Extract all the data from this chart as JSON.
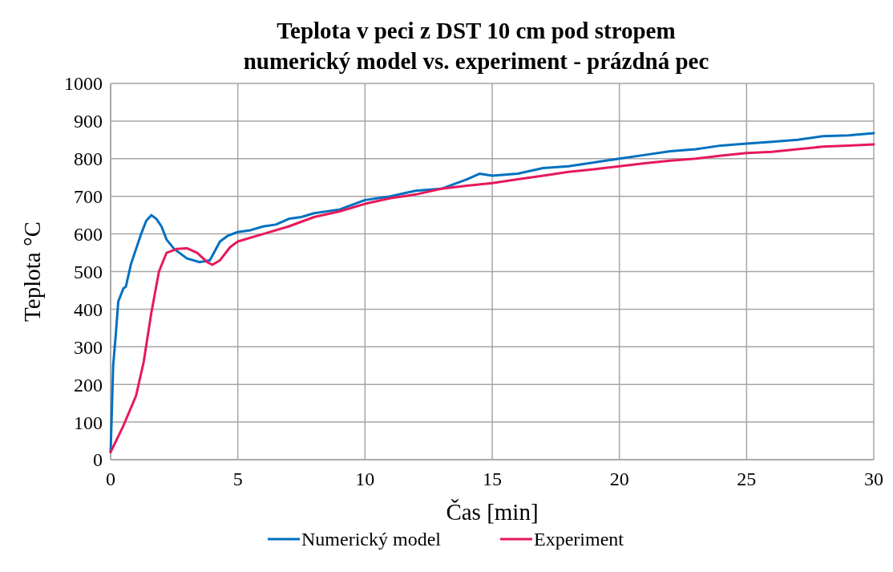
{
  "chart_data": {
    "type": "line",
    "title": "Teplota v peci z DST 10 cm pod stropem",
    "subtitle": "numerický model vs. experiment - prázdná pec",
    "xlabel": "Čas [min]",
    "ylabel": "Teplota °C",
    "xlim": [
      0,
      30
    ],
    "ylim": [
      0,
      1000
    ],
    "xticks": [
      0,
      5,
      10,
      15,
      20,
      25,
      30
    ],
    "yticks": [
      0,
      100,
      200,
      300,
      400,
      500,
      600,
      700,
      800,
      900,
      1000
    ],
    "grid": true,
    "legend": "bottom",
    "marker": "none",
    "line_style": "solid",
    "series": [
      {
        "name": "Numerický model",
        "color": "#0070c0",
        "x": [
          0,
          0.1,
          0.2,
          0.3,
          0.5,
          0.6,
          0.8,
          1.0,
          1.2,
          1.4,
          1.6,
          1.8,
          2.0,
          2.2,
          2.5,
          3.0,
          3.5,
          3.9,
          4.1,
          4.3,
          4.6,
          5,
          5.5,
          6,
          6.5,
          7,
          7.5,
          8,
          9,
          10,
          11,
          12,
          13,
          14,
          14.5,
          15,
          16,
          17,
          18,
          19,
          20,
          21,
          22,
          23,
          24,
          25,
          26,
          27,
          28,
          29,
          30
        ],
        "values": [
          20,
          250,
          330,
          420,
          455,
          460,
          520,
          560,
          600,
          635,
          650,
          640,
          620,
          585,
          560,
          535,
          525,
          530,
          555,
          580,
          595,
          605,
          610,
          620,
          625,
          640,
          645,
          655,
          665,
          690,
          700,
          715,
          720,
          745,
          760,
          755,
          760,
          775,
          780,
          790,
          800,
          810,
          820,
          825,
          835,
          840,
          845,
          850,
          860,
          862,
          868
        ]
      },
      {
        "name": "Experiment",
        "color": "#e6195a",
        "x": [
          0,
          0.5,
          1.0,
          1.3,
          1.6,
          1.9,
          2.2,
          2.6,
          3.0,
          3.4,
          3.8,
          4.0,
          4.3,
          4.7,
          5,
          6,
          7,
          8,
          9,
          10,
          11,
          12,
          13,
          14,
          15,
          16,
          17,
          18,
          19,
          20,
          21,
          22,
          23,
          24,
          25,
          26,
          27,
          28,
          29,
          30
        ],
        "values": [
          20,
          90,
          170,
          260,
          390,
          500,
          550,
          560,
          562,
          550,
          525,
          518,
          530,
          565,
          580,
          600,
          620,
          645,
          660,
          680,
          695,
          705,
          720,
          728,
          735,
          745,
          755,
          765,
          772,
          780,
          788,
          795,
          800,
          808,
          815,
          818,
          825,
          832,
          835,
          838
        ]
      }
    ]
  }
}
